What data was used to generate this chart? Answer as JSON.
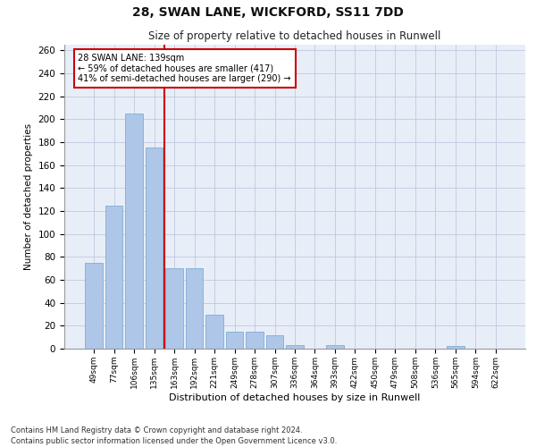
{
  "title_line1": "28, SWAN LANE, WICKFORD, SS11 7DD",
  "title_line2": "Size of property relative to detached houses in Runwell",
  "xlabel": "Distribution of detached houses by size in Runwell",
  "ylabel": "Number of detached properties",
  "annotation_line1": "28 SWAN LANE: 139sqm",
  "annotation_line2": "← 59% of detached houses are smaller (417)",
  "annotation_line3": "41% of semi-detached houses are larger (290) →",
  "bar_labels": [
    "49sqm",
    "77sqm",
    "106sqm",
    "135sqm",
    "163sqm",
    "192sqm",
    "221sqm",
    "249sqm",
    "278sqm",
    "307sqm",
    "336sqm",
    "364sqm",
    "393sqm",
    "422sqm",
    "450sqm",
    "479sqm",
    "508sqm",
    "536sqm",
    "565sqm",
    "594sqm",
    "622sqm"
  ],
  "bar_values": [
    75,
    125,
    205,
    175,
    70,
    70,
    30,
    15,
    15,
    12,
    3,
    0,
    3,
    0,
    0,
    0,
    0,
    0,
    2,
    0,
    0
  ],
  "bar_color": "#aec6e8",
  "bar_edge_color": "#7fafd4",
  "red_line_x": 3.5,
  "vline_color": "#cc0000",
  "background_color": "#e8eef8",
  "grid_color": "#c0c8de",
  "ylim": [
    0,
    265
  ],
  "yticks": [
    0,
    20,
    40,
    60,
    80,
    100,
    120,
    140,
    160,
    180,
    200,
    220,
    240,
    260
  ],
  "footnote_line1": "Contains HM Land Registry data © Crown copyright and database right 2024.",
  "footnote_line2": "Contains public sector information licensed under the Open Government Licence v3.0."
}
